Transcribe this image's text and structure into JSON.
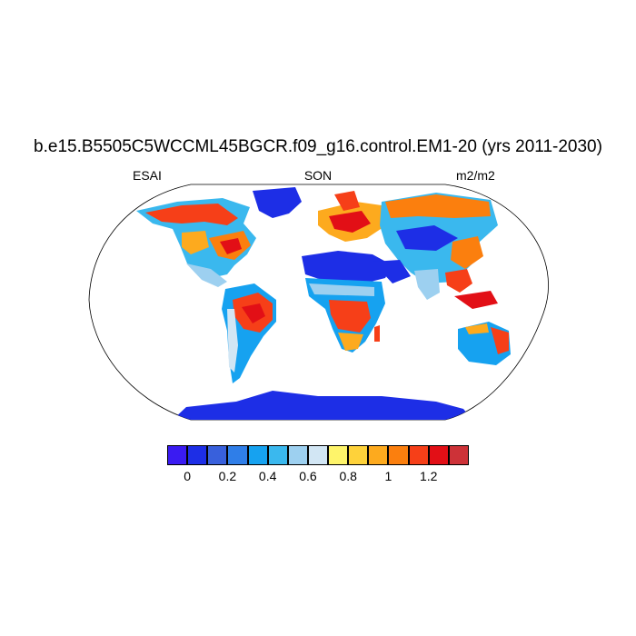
{
  "header": {
    "title": "b.e15.B5505C5WCCML45BGCR.f09_g16.control.EM1-20 (yrs 2011-2030)",
    "left_label": "ESAI",
    "center_label": "SON",
    "right_label": "m2/m2"
  },
  "colorbar": {
    "colors": [
      "#3a1bf2",
      "#1d2ee6",
      "#3860dc",
      "#2f7ee8",
      "#16a2f0",
      "#3ab8ee",
      "#9dd0f0",
      "#d2e6f4",
      "#fef46a",
      "#fed23a",
      "#fdaa1e",
      "#fb7f0e",
      "#f63f18",
      "#e20f16",
      "#cd3238"
    ],
    "tick_labels": [
      "0",
      "0.2",
      "0.4",
      "0.6",
      "0.8",
      "1",
      "1.2"
    ]
  }
}
